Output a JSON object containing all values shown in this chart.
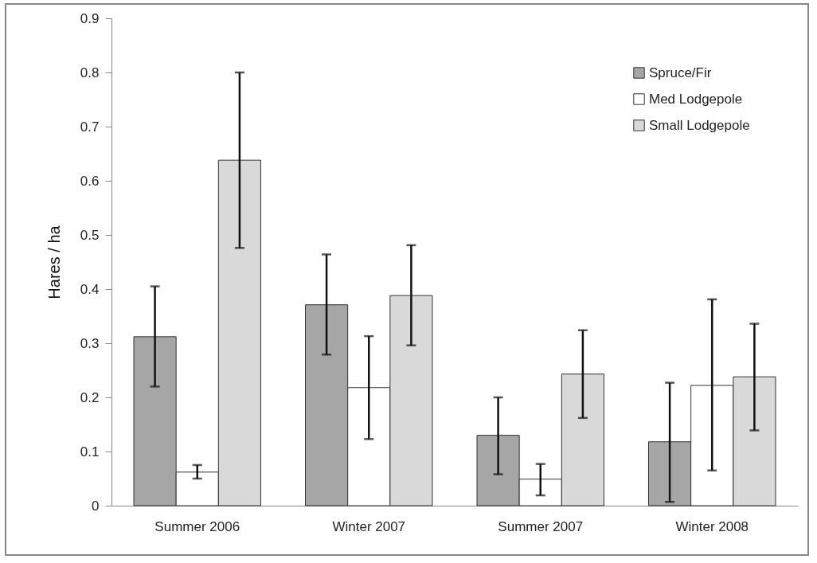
{
  "chart_data": {
    "type": "bar",
    "ylabel": "Hares / ha",
    "categories": [
      "Summer 2006",
      "Winter 2007",
      "Summer 2007",
      "Winter 2008"
    ],
    "series": [
      {
        "name": "Spruce/Fir",
        "color": "#a6a6a6",
        "values": [
          0.312,
          0.371,
          0.13,
          0.118
        ],
        "errors": [
          [
            0.22,
            0.405
          ],
          [
            0.279,
            0.464
          ],
          [
            0.058,
            0.2
          ],
          [
            0.007,
            0.227
          ]
        ]
      },
      {
        "name": "Med Lodgepole",
        "color": "#ffffff",
        "values": [
          0.062,
          0.218,
          0.049,
          0.222
        ],
        "errors": [
          [
            0.05,
            0.075
          ],
          [
            0.123,
            0.313
          ],
          [
            0.019,
            0.077
          ],
          [
            0.065,
            0.381
          ]
        ]
      },
      {
        "name": "Small Lodgepole",
        "color": "#d9d9d9",
        "values": [
          0.638,
          0.388,
          0.243,
          0.238
        ],
        "errors": [
          [
            0.476,
            0.8
          ],
          [
            0.296,
            0.481
          ],
          [
            0.162,
            0.324
          ],
          [
            0.139,
            0.336
          ]
        ]
      }
    ],
    "ylim": [
      0,
      0.9
    ],
    "yticks": [
      0,
      0.1,
      0.2,
      0.3,
      0.4,
      0.5,
      0.6,
      0.7,
      0.8,
      0.9
    ],
    "grid": false,
    "legend": "top right"
  }
}
